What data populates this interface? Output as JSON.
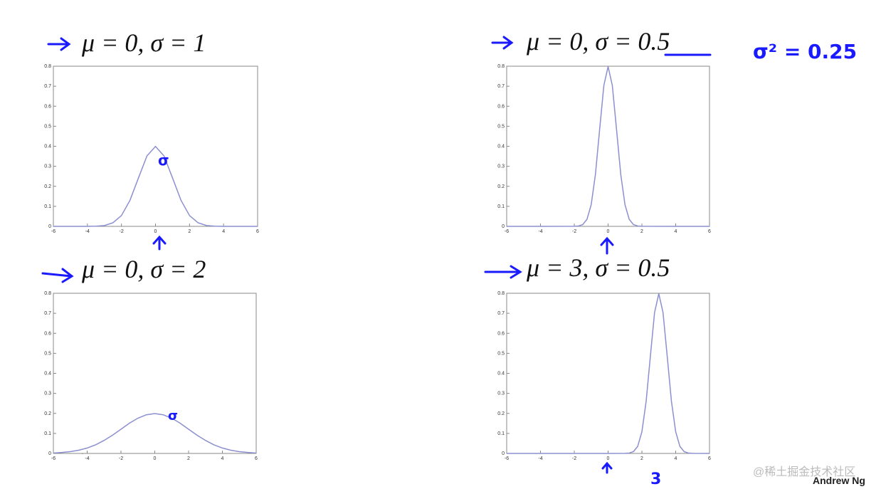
{
  "chart_data": [
    {
      "type": "line",
      "title": "μ = 0, σ = 1",
      "color": "#8c8fd0",
      "x": [
        -6,
        -5.5,
        -5,
        -4.5,
        -4,
        -3.5,
        -3,
        -2.5,
        -2,
        -1.5,
        -1,
        -0.5,
        0,
        0.5,
        1,
        1.5,
        2,
        2.5,
        3,
        3.5,
        4,
        4.5,
        5,
        5.5,
        6
      ],
      "values": [
        0,
        0,
        0,
        0,
        0.0001,
        0.001,
        0.004,
        0.018,
        0.054,
        0.13,
        0.242,
        0.352,
        0.399,
        0.352,
        0.242,
        0.13,
        0.054,
        0.018,
        0.004,
        0.001,
        0.0001,
        0,
        0,
        0,
        0
      ],
      "xlim": [
        -6,
        6
      ],
      "ylim": [
        0,
        0.8
      ],
      "xticks": [
        -6,
        -4,
        -2,
        0,
        2,
        4,
        6
      ],
      "yticks": [
        0,
        0.1,
        0.2,
        0.3,
        0.4,
        0.5,
        0.6,
        0.7,
        0.8
      ],
      "annotations": [
        "σ"
      ]
    },
    {
      "type": "line",
      "title": "μ = 0, σ = 0.5",
      "color": "#8c8fd0",
      "x": [
        -6,
        -4,
        -2,
        -1.75,
        -1.5,
        -1.25,
        -1,
        -0.75,
        -0.5,
        -0.25,
        0,
        0.25,
        0.5,
        0.75,
        1,
        1.25,
        1.5,
        1.75,
        2,
        4,
        6
      ],
      "values": [
        0,
        0,
        0.0003,
        0.002,
        0.009,
        0.035,
        0.108,
        0.259,
        0.484,
        0.704,
        0.798,
        0.704,
        0.484,
        0.259,
        0.108,
        0.035,
        0.009,
        0.002,
        0.0003,
        0,
        0
      ],
      "xlim": [
        -6,
        6
      ],
      "ylim": [
        0,
        0.8
      ],
      "xticks": [
        -6,
        -4,
        -2,
        0,
        2,
        4,
        6
      ],
      "yticks": [
        0,
        0.1,
        0.2,
        0.3,
        0.4,
        0.5,
        0.6,
        0.7,
        0.8
      ],
      "annotations": [
        "σ² = 0.25"
      ]
    },
    {
      "type": "line",
      "title": "μ = 0, σ = 2",
      "color": "#8c8fd0",
      "x": [
        -6,
        -5.5,
        -5,
        -4.5,
        -4,
        -3.5,
        -3,
        -2.5,
        -2,
        -1.5,
        -1,
        -0.5,
        0,
        0.5,
        1,
        1.5,
        2,
        2.5,
        3,
        3.5,
        4,
        4.5,
        5,
        5.5,
        6
      ],
      "values": [
        0.002,
        0.005,
        0.009,
        0.016,
        0.027,
        0.043,
        0.065,
        0.091,
        0.121,
        0.151,
        0.176,
        0.193,
        0.199,
        0.193,
        0.176,
        0.151,
        0.121,
        0.091,
        0.065,
        0.043,
        0.027,
        0.016,
        0.009,
        0.005,
        0.002
      ],
      "xlim": [
        -6,
        6
      ],
      "ylim": [
        0,
        0.8
      ],
      "xticks": [
        -6,
        -4,
        -2,
        0,
        2,
        4,
        6
      ],
      "yticks": [
        0,
        0.1,
        0.2,
        0.3,
        0.4,
        0.5,
        0.6,
        0.7,
        0.8
      ],
      "annotations": [
        "σ"
      ]
    },
    {
      "type": "line",
      "title": "μ = 3, σ = 0.5",
      "color": "#8c8fd0",
      "x": [
        -6,
        -4,
        -2,
        0,
        1,
        1.25,
        1.5,
        1.75,
        2,
        2.25,
        2.5,
        2.75,
        3,
        3.25,
        3.5,
        3.75,
        4,
        4.25,
        4.5,
        4.75,
        5,
        6
      ],
      "values": [
        0,
        0,
        0,
        0,
        0.0003,
        0.002,
        0.009,
        0.035,
        0.108,
        0.259,
        0.484,
        0.704,
        0.798,
        0.704,
        0.484,
        0.259,
        0.108,
        0.035,
        0.009,
        0.002,
        0.0003,
        0
      ],
      "xlim": [
        -6,
        6
      ],
      "ylim": [
        0,
        0.8
      ],
      "xticks": [
        -6,
        -4,
        -2,
        0,
        2,
        4,
        6
      ],
      "yticks": [
        0,
        0.1,
        0.2,
        0.3,
        0.4,
        0.5,
        0.6,
        0.7,
        0.8
      ],
      "annotations": [
        "3"
      ]
    }
  ],
  "footer": "Andrew Ng",
  "watermark": "@稀土掘金技术社区"
}
